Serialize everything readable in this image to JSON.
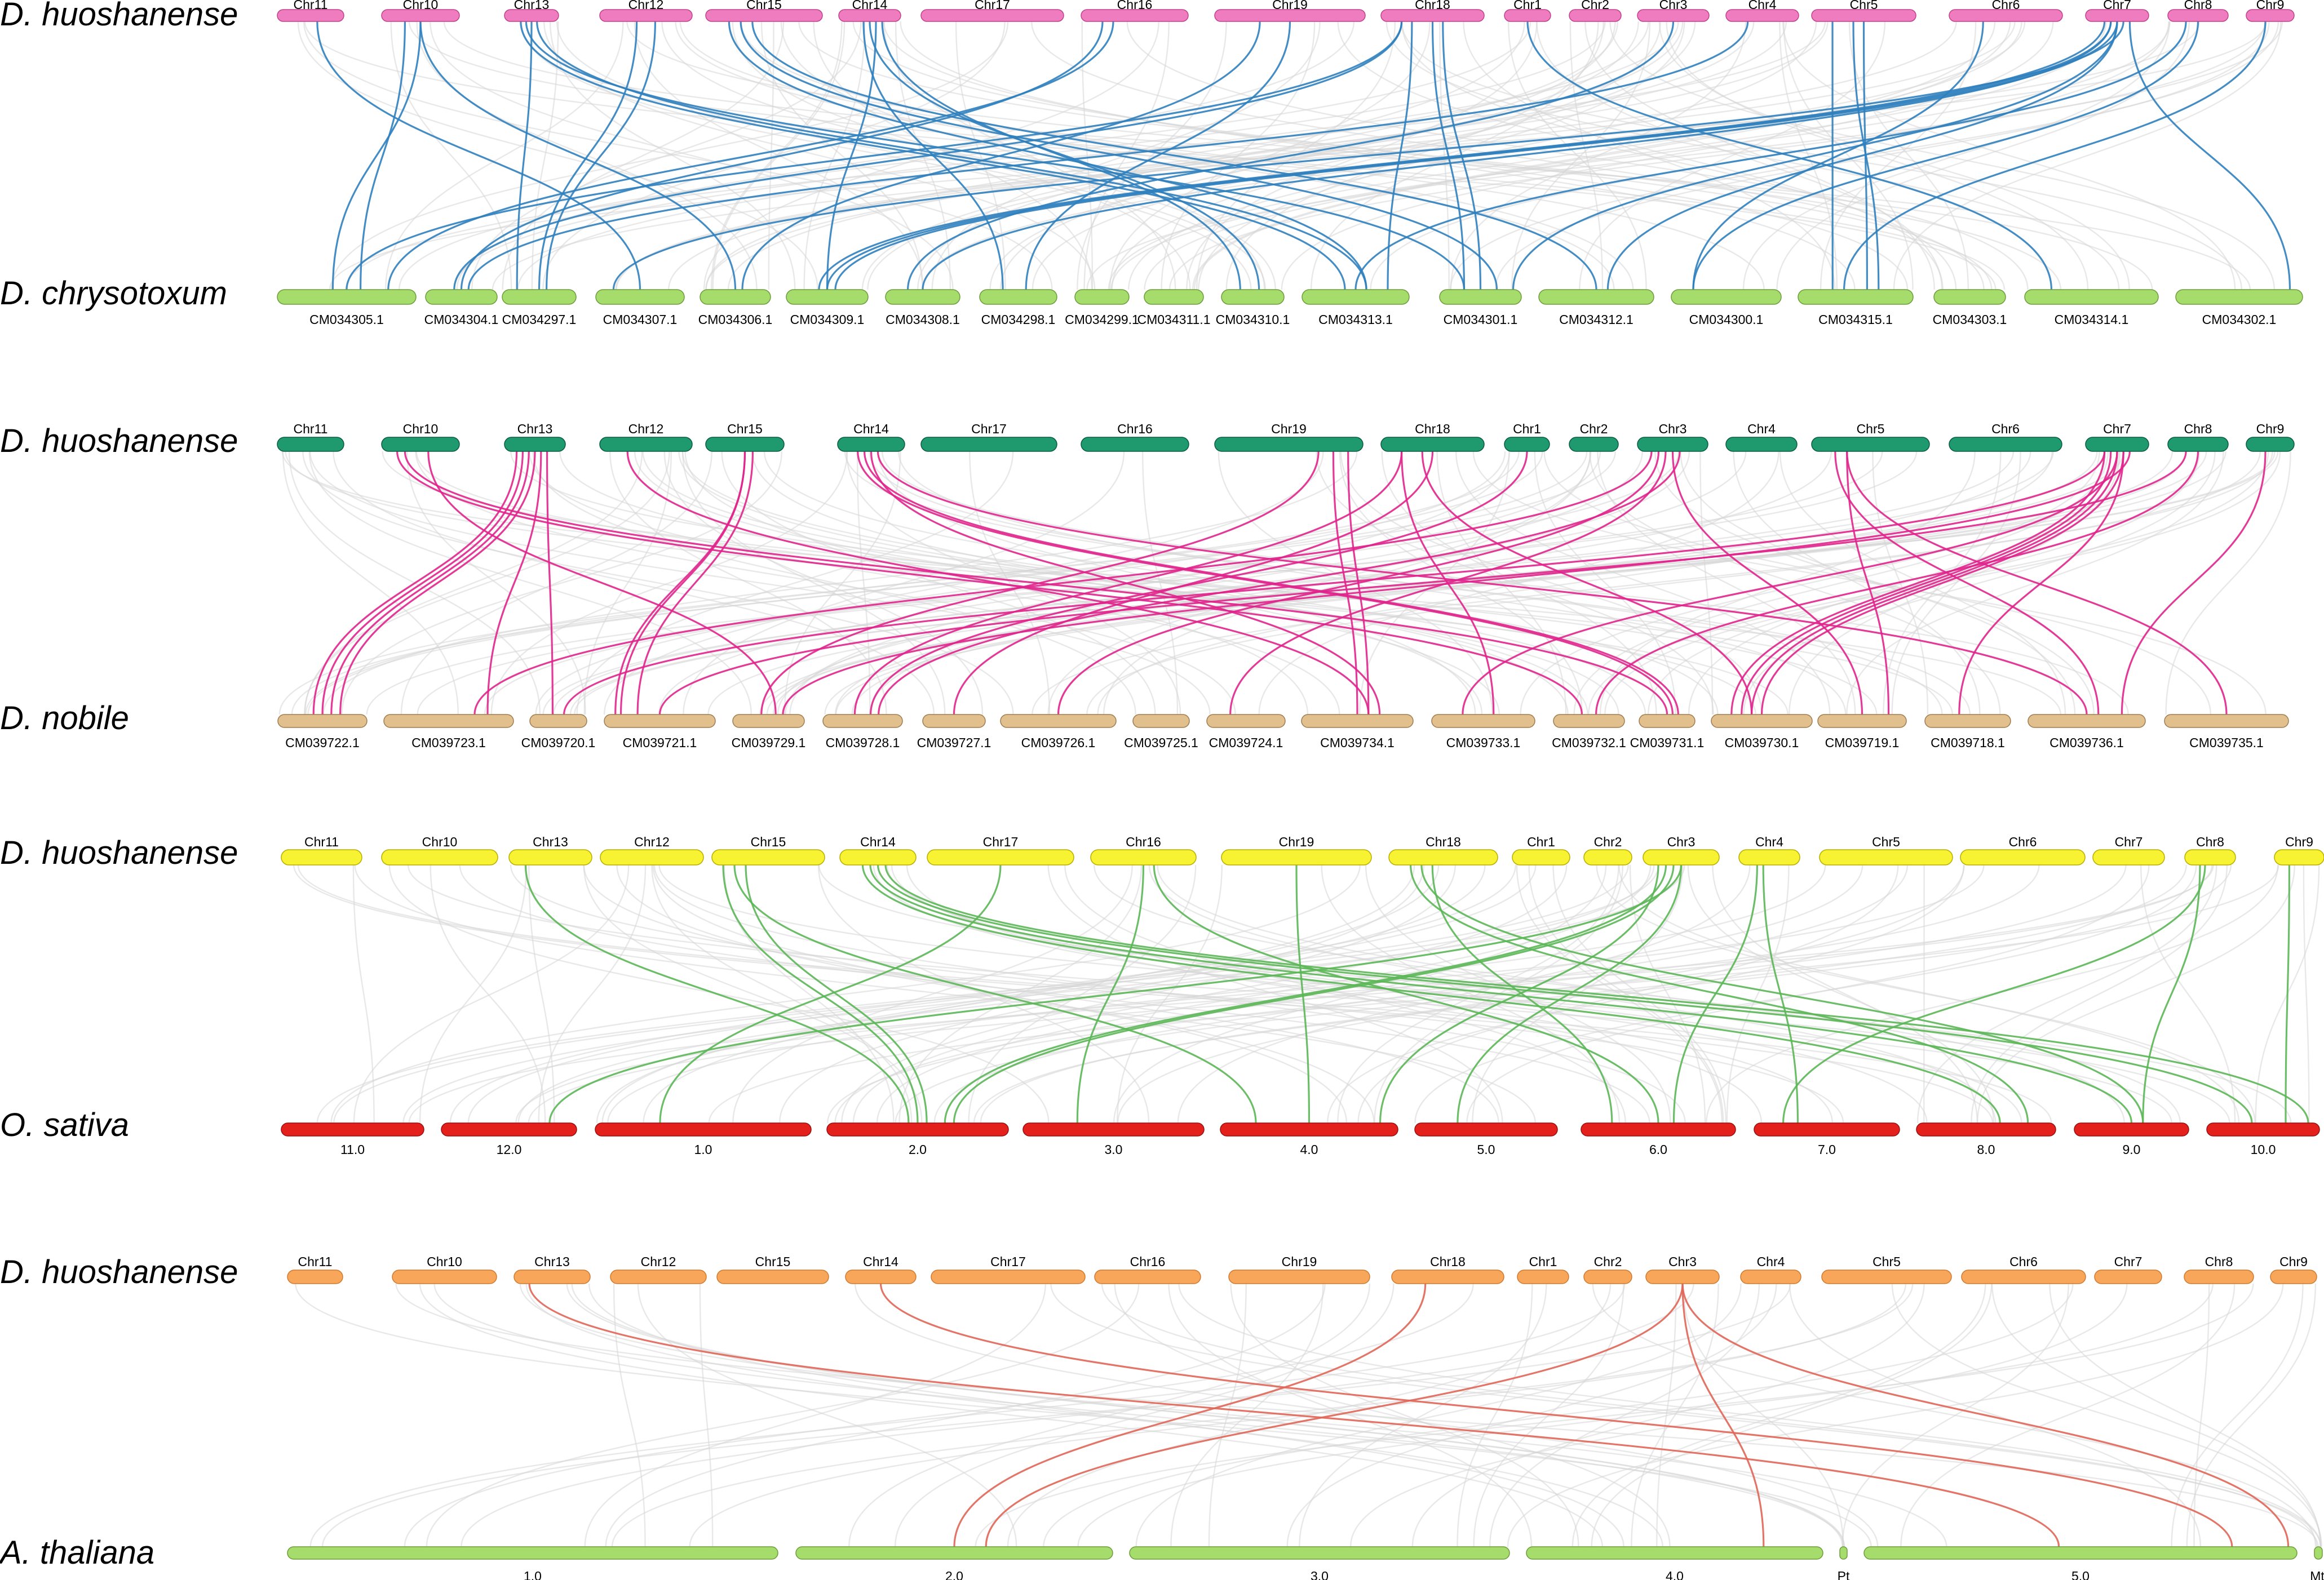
{
  "panels": [
    {
      "top_species": "D. huoshanense",
      "bottom_species": "D. chrysotoxum",
      "top_color": "#f07cc0",
      "bottom_color": "#a6dc6c",
      "link_color": "#2f7fbe",
      "top_chromosomes": [
        "Chr11",
        "Chr10",
        "Chr13",
        "Chr12",
        "Chr15",
        "Chr14",
        "Chr17",
        "Chr16",
        "Chr19",
        "Chr18",
        "Chr1",
        "Chr2",
        "Chr3",
        "Chr4",
        "Chr5",
        "Chr6",
        "Chr7",
        "Chr8",
        "Chr9"
      ],
      "bottom_chromosomes": [
        "CM034305.1",
        "CM034304.1",
        "CM034297.1",
        "CM034307.1",
        "CM034306.1",
        "CM034309.1",
        "CM034308.1",
        "CM034298.1",
        "CM034299.1",
        "CM034311.1",
        "CM034310.1",
        "CM034313.1",
        "CM034301.1",
        "CM034312.1",
        "CM034300.1",
        "CM034315.1",
        "CM034303.1",
        "CM034314.1",
        "CM034302.1"
      ],
      "links": [
        [
          0,
          0.6,
          3,
          0.5
        ],
        [
          1,
          0.5,
          0,
          0.4
        ],
        [
          1,
          0.3,
          0,
          0.6
        ],
        [
          1,
          0.5,
          4,
          0.5
        ],
        [
          2,
          0.3,
          11,
          0.4
        ],
        [
          2,
          0.4,
          12,
          0.3
        ],
        [
          2,
          0.6,
          11,
          0.6
        ],
        [
          2,
          0.5,
          2,
          0.2
        ],
        [
          3,
          0.4,
          2,
          0.5
        ],
        [
          3,
          0.6,
          2,
          0.6
        ],
        [
          4,
          0.2,
          11,
          0.6
        ],
        [
          4,
          0.3,
          12,
          0.7
        ],
        [
          4,
          0.4,
          13,
          0.5
        ],
        [
          5,
          0.5,
          10,
          0.6
        ],
        [
          5,
          0.6,
          5,
          0.5
        ],
        [
          5,
          0.4,
          7,
          0.3
        ],
        [
          5,
          0.7,
          10,
          0.3
        ],
        [
          7,
          0.2,
          1,
          0.5
        ],
        [
          7,
          0.3,
          0,
          0.8
        ],
        [
          8,
          0.3,
          4,
          0.6
        ],
        [
          8,
          0.5,
          7,
          0.6
        ],
        [
          9,
          0.2,
          0,
          0.5
        ],
        [
          9,
          0.2,
          1,
          0.4
        ],
        [
          9,
          0.3,
          11,
          0.8
        ],
        [
          9,
          0.5,
          12,
          0.3
        ],
        [
          9,
          0.6,
          12,
          0.5
        ],
        [
          12,
          0.5,
          6,
          0.3
        ],
        [
          13,
          0.3,
          1,
          0.6
        ],
        [
          14,
          0.5,
          15,
          0.6
        ],
        [
          14,
          0.2,
          15,
          0.3
        ],
        [
          14,
          0.4,
          15,
          0.7
        ],
        [
          15,
          0.3,
          14,
          0.2
        ],
        [
          16,
          0.3,
          5,
          0.4
        ],
        [
          16,
          0.4,
          5,
          0.5
        ],
        [
          16,
          0.5,
          5,
          0.6
        ],
        [
          16,
          0.6,
          3,
          0.2
        ],
        [
          16,
          0.4,
          6,
          0.5
        ],
        [
          16,
          0.5,
          13,
          0.6
        ],
        [
          16,
          0.7,
          18,
          0.9
        ],
        [
          16,
          0.5,
          12,
          0.9
        ],
        [
          17,
          0.3,
          11,
          0.5
        ],
        [
          17,
          0.5,
          14,
          0.2
        ],
        [
          18,
          0.4,
          15,
          0.4
        ],
        [
          10,
          0.5,
          17,
          0.2
        ]
      ]
    },
    {
      "top_species": "D. huoshanense",
      "bottom_species": "D. nobile",
      "top_color": "#1f9a6e",
      "bottom_color": "#e2c08e",
      "link_color": "#e0238c",
      "top_chromosomes": [
        "Chr11",
        "Chr10",
        "Chr13",
        "Chr12",
        "Chr15",
        "Chr14",
        "Chr17",
        "Chr16",
        "Chr19",
        "Chr18",
        "Chr1",
        "Chr2",
        "Chr3",
        "Chr4",
        "Chr5",
        "Chr6",
        "Chr7",
        "Chr8",
        "Chr9"
      ],
      "bottom_chromosomes": [
        "CM039722.1",
        "CM039723.1",
        "CM039720.1",
        "CM039721.1",
        "CM039729.1",
        "CM039728.1",
        "CM039727.1",
        "CM039726.1",
        "CM039725.1",
        "CM039724.1",
        "CM039734.1",
        "CM039733.1",
        "CM039732.1",
        "CM039731.1",
        "CM039730.1",
        "CM039719.1",
        "CM039718.1",
        "CM039736.1",
        "CM039735.1"
      ],
      "links": [
        [
          1,
          0.2,
          12,
          0.4
        ],
        [
          1,
          0.3,
          13,
          0.5
        ],
        [
          1,
          0.6,
          4,
          0.6
        ],
        [
          2,
          0.2,
          0,
          0.4
        ],
        [
          2,
          0.3,
          0,
          0.5
        ],
        [
          2,
          0.4,
          0,
          0.6
        ],
        [
          2,
          0.5,
          0,
          0.7
        ],
        [
          2,
          0.6,
          1,
          0.8
        ],
        [
          2,
          0.7,
          2,
          0.4
        ],
        [
          3,
          0.3,
          10,
          0.6
        ],
        [
          4,
          0.5,
          3,
          0.1
        ],
        [
          4,
          0.5,
          3,
          0.15
        ],
        [
          4,
          0.6,
          3,
          0.3
        ],
        [
          5,
          0.3,
          13,
          0.6
        ],
        [
          5,
          0.4,
          13,
          0.7
        ],
        [
          5,
          0.5,
          10,
          0.7
        ],
        [
          5,
          0.6,
          17,
          0.5
        ],
        [
          8,
          0.7,
          4,
          0.4
        ],
        [
          8,
          0.8,
          10,
          0.5
        ],
        [
          8,
          0.9,
          10,
          0.6
        ],
        [
          9,
          0.2,
          5,
          0.4
        ],
        [
          9,
          0.2,
          11,
          0.6
        ],
        [
          9,
          0.4,
          14,
          0.4
        ],
        [
          9,
          0.5,
          6,
          0.5
        ],
        [
          12,
          0.2,
          1,
          0.7
        ],
        [
          12,
          0.3,
          7,
          0.5
        ],
        [
          12,
          0.4,
          9,
          0.3
        ],
        [
          12,
          0.5,
          15,
          0.5
        ],
        [
          12,
          0.6,
          5,
          0.7
        ],
        [
          14,
          0.2,
          17,
          0.6
        ],
        [
          14,
          0.3,
          18,
          0.5
        ],
        [
          14,
          0.3,
          15,
          0.8
        ],
        [
          16,
          0.3,
          14,
          0.2
        ],
        [
          16,
          0.4,
          14,
          0.3
        ],
        [
          16,
          0.5,
          14,
          0.4
        ],
        [
          16,
          0.6,
          14,
          0.5
        ],
        [
          16,
          0.3,
          2,
          0.6
        ],
        [
          16,
          0.5,
          11,
          0.3
        ],
        [
          16,
          0.6,
          16,
          0.4
        ],
        [
          16,
          0.7,
          4,
          0.7
        ],
        [
          17,
          0.3,
          3,
          0.5
        ],
        [
          17,
          0.5,
          12,
          0.6
        ],
        [
          18,
          0.4,
          17,
          0.8
        ],
        [
          10,
          0.5,
          5,
          0.6
        ]
      ]
    },
    {
      "top_species": "D. huoshanense",
      "bottom_species": "O. sativa",
      "top_color": "#f8f332",
      "bottom_color": "#e4201d",
      "link_color": "#5cb656",
      "top_chromosomes": [
        "Chr11",
        "Chr10",
        "Chr13",
        "Chr12",
        "Chr15",
        "Chr14",
        "Chr17",
        "Chr16",
        "Chr19",
        "Chr18",
        "Chr1",
        "Chr2",
        "Chr3",
        "Chr4",
        "Chr5",
        "Chr6",
        "Chr7",
        "Chr8",
        "Chr9"
      ],
      "bottom_chromosomes": [
        "11.0",
        "12.0",
        "1.0",
        "2.0",
        "3.0",
        "4.0",
        "5.0",
        "6.0",
        "7.0",
        "8.0",
        "9.0",
        "10.0"
      ],
      "links": [
        [
          2,
          0.2,
          3,
          0.45
        ],
        [
          4,
          0.1,
          3,
          0.5
        ],
        [
          4,
          0.2,
          5,
          0.2
        ],
        [
          4,
          0.3,
          3,
          0.55
        ],
        [
          5,
          0.3,
          9,
          0.6
        ],
        [
          5,
          0.4,
          10,
          0.5
        ],
        [
          5,
          0.5,
          11,
          0.4
        ],
        [
          6,
          0.5,
          2,
          0.3
        ],
        [
          7,
          0.5,
          4,
          0.3
        ],
        [
          7,
          0.6,
          7,
          0.5
        ],
        [
          8,
          0.5,
          5,
          0.5
        ],
        [
          9,
          0.2,
          9,
          0.8
        ],
        [
          9,
          0.3,
          10,
          0.6
        ],
        [
          9,
          0.4,
          7,
          0.2
        ],
        [
          12,
          0.2,
          5,
          0.9
        ],
        [
          12,
          0.3,
          3,
          0.65
        ],
        [
          12,
          0.4,
          3,
          0.7
        ],
        [
          12,
          0.5,
          6,
          0.3
        ],
        [
          12,
          0.5,
          1,
          0.8
        ],
        [
          13,
          0.3,
          7,
          0.6
        ],
        [
          13,
          0.4,
          8,
          0.3
        ],
        [
          17,
          0.3,
          10,
          0.6
        ],
        [
          17,
          0.4,
          8,
          0.2
        ],
        [
          18,
          0.3,
          11,
          0.7
        ],
        [
          5,
          0.6,
          11,
          0.9
        ]
      ]
    },
    {
      "top_species": "D. huoshanense",
      "bottom_species": "A. thaliana",
      "top_color": "#f8a65a",
      "bottom_color": "#a6dc6c",
      "link_color": "#e06658",
      "top_chromosomes": [
        "Chr11",
        "Chr10",
        "Chr13",
        "Chr12",
        "Chr15",
        "Chr14",
        "Chr17",
        "Chr16",
        "Chr19",
        "Chr18",
        "Chr1",
        "Chr2",
        "Chr3",
        "Chr4",
        "Chr5",
        "Chr6",
        "Chr7",
        "Chr8",
        "Chr9"
      ],
      "bottom_chromosomes": [
        "1.0",
        "2.0",
        "3.0",
        "4.0",
        "Pt",
        "5.0",
        "Mt"
      ],
      "links": [
        [
          2,
          0.2,
          5,
          0.45
        ],
        [
          5,
          0.5,
          5,
          0.85
        ],
        [
          9,
          0.3,
          1,
          0.5
        ],
        [
          12,
          0.5,
          1,
          0.6
        ],
        [
          12,
          0.5,
          3,
          0.8
        ],
        [
          12,
          0.5,
          5,
          0.98
        ]
      ]
    }
  ]
}
